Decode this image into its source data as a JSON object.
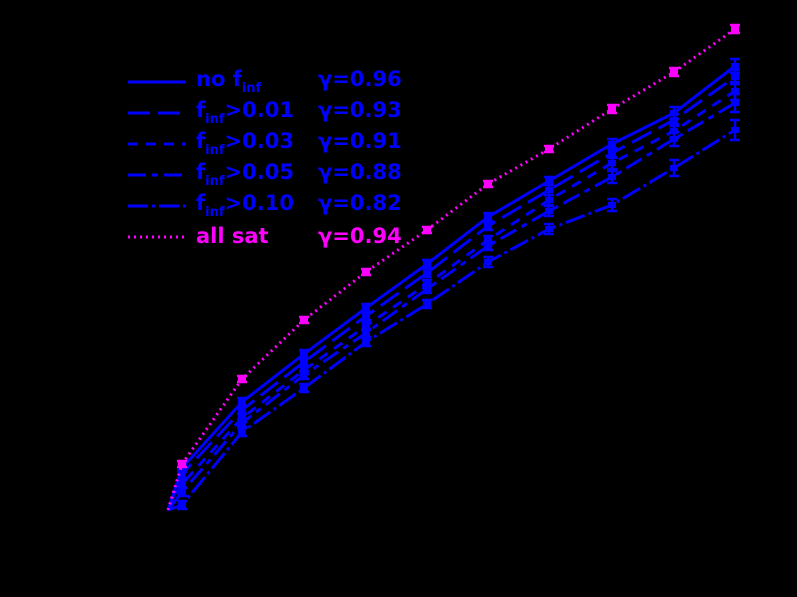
{
  "background_color": "#000000",
  "colors": {
    "blue": "#0000ff",
    "magenta": "#ff00ff"
  },
  "legend": {
    "items": [
      {
        "prefix": "no f",
        "sub": "inf",
        "suffix": "",
        "gamma": "γ=0.96",
        "style": "solid",
        "color": "#0000ff"
      },
      {
        "prefix": "f",
        "sub": "inf",
        "suffix": ">0.01",
        "gamma": "γ=0.93",
        "style": "long-dash",
        "color": "#0000ff"
      },
      {
        "prefix": "f",
        "sub": "inf",
        "suffix": ">0.03",
        "gamma": "γ=0.91",
        "style": "short-dash",
        "color": "#0000ff"
      },
      {
        "prefix": "f",
        "sub": "inf",
        "suffix": ">0.05",
        "gamma": "γ=0.88",
        "style": "long-short-dash",
        "color": "#0000ff"
      },
      {
        "prefix": "f",
        "sub": "inf",
        "suffix": ">0.10",
        "gamma": "γ=0.82",
        "style": "dash-dot",
        "color": "#0000ff"
      },
      {
        "prefix": "all sat",
        "sub": "",
        "suffix": "",
        "gamma": "γ=0.94",
        "style": "dotted",
        "color": "#ff00ff"
      }
    ]
  },
  "chart_data": {
    "type": "line",
    "title": "",
    "xlabel": "",
    "ylabel": "",
    "note": "Axes, ticks and tick labels are drawn black on black background (not visible). Values below are pixel-derived plot coordinates: x = screen px, y = screen px (smaller = higher).",
    "origin": {
      "x": 168,
      "y": 510
    },
    "x": [
      182,
      242,
      304,
      366,
      427,
      488,
      549,
      612,
      674,
      735
    ],
    "series": [
      {
        "name": "no f_inf",
        "gamma": 0.96,
        "style": "solid",
        "color": "#0000ff",
        "error_bars": true,
        "values": [
          468,
          402,
          354,
          308,
          264,
          217,
          181,
          144,
          113,
          66
        ]
      },
      {
        "name": "f_inf>0.01",
        "gamma": 0.93,
        "style": "long-dash",
        "color": "#0000ff",
        "error_bars": true,
        "values": [
          474,
          410,
          362,
          316,
          273,
          226,
          190,
          153,
          120,
          77
        ]
      },
      {
        "name": "f_inf>0.03",
        "gamma": 0.91,
        "style": "short-dash",
        "color": "#0000ff",
        "error_bars": true,
        "values": [
          484,
          418,
          370,
          326,
          284,
          240,
          200,
          163,
          131,
          91
        ]
      },
      {
        "name": "f_inf>0.05",
        "gamma": 0.88,
        "style": "long-short-dash",
        "color": "#0000ff",
        "error_bars": true,
        "values": [
          492,
          423,
          375,
          333,
          289,
          246,
          211,
          177,
          139,
          103
        ]
      },
      {
        "name": "f_inf>0.10",
        "gamma": 0.82,
        "style": "dash-dot",
        "color": "#0000ff",
        "error_bars": true,
        "values": [
          505,
          432,
          388,
          342,
          304,
          262,
          229,
          205,
          168,
          130
        ]
      },
      {
        "name": "all sat",
        "gamma": 0.94,
        "style": "dotted",
        "color": "#ff00ff",
        "error_bars": true,
        "values": [
          464,
          379,
          320,
          272,
          230,
          184,
          149,
          109,
          72,
          29
        ]
      }
    ],
    "errors": [
      [
        4,
        4,
        4,
        4,
        4,
        4,
        4,
        5,
        6,
        7
      ],
      [
        4,
        4,
        4,
        4,
        4,
        4,
        5,
        5,
        6,
        7
      ],
      [
        4,
        4,
        4,
        4,
        4,
        4,
        5,
        6,
        7,
        9
      ],
      [
        4,
        4,
        4,
        4,
        4,
        4,
        5,
        6,
        7,
        9
      ],
      [
        4,
        4,
        4,
        4,
        4,
        5,
        5,
        6,
        8,
        10
      ],
      [
        3,
        3,
        3,
        3,
        3,
        3,
        3,
        4,
        4,
        4
      ]
    ],
    "legend_position": "upper-left",
    "grid": false
  }
}
